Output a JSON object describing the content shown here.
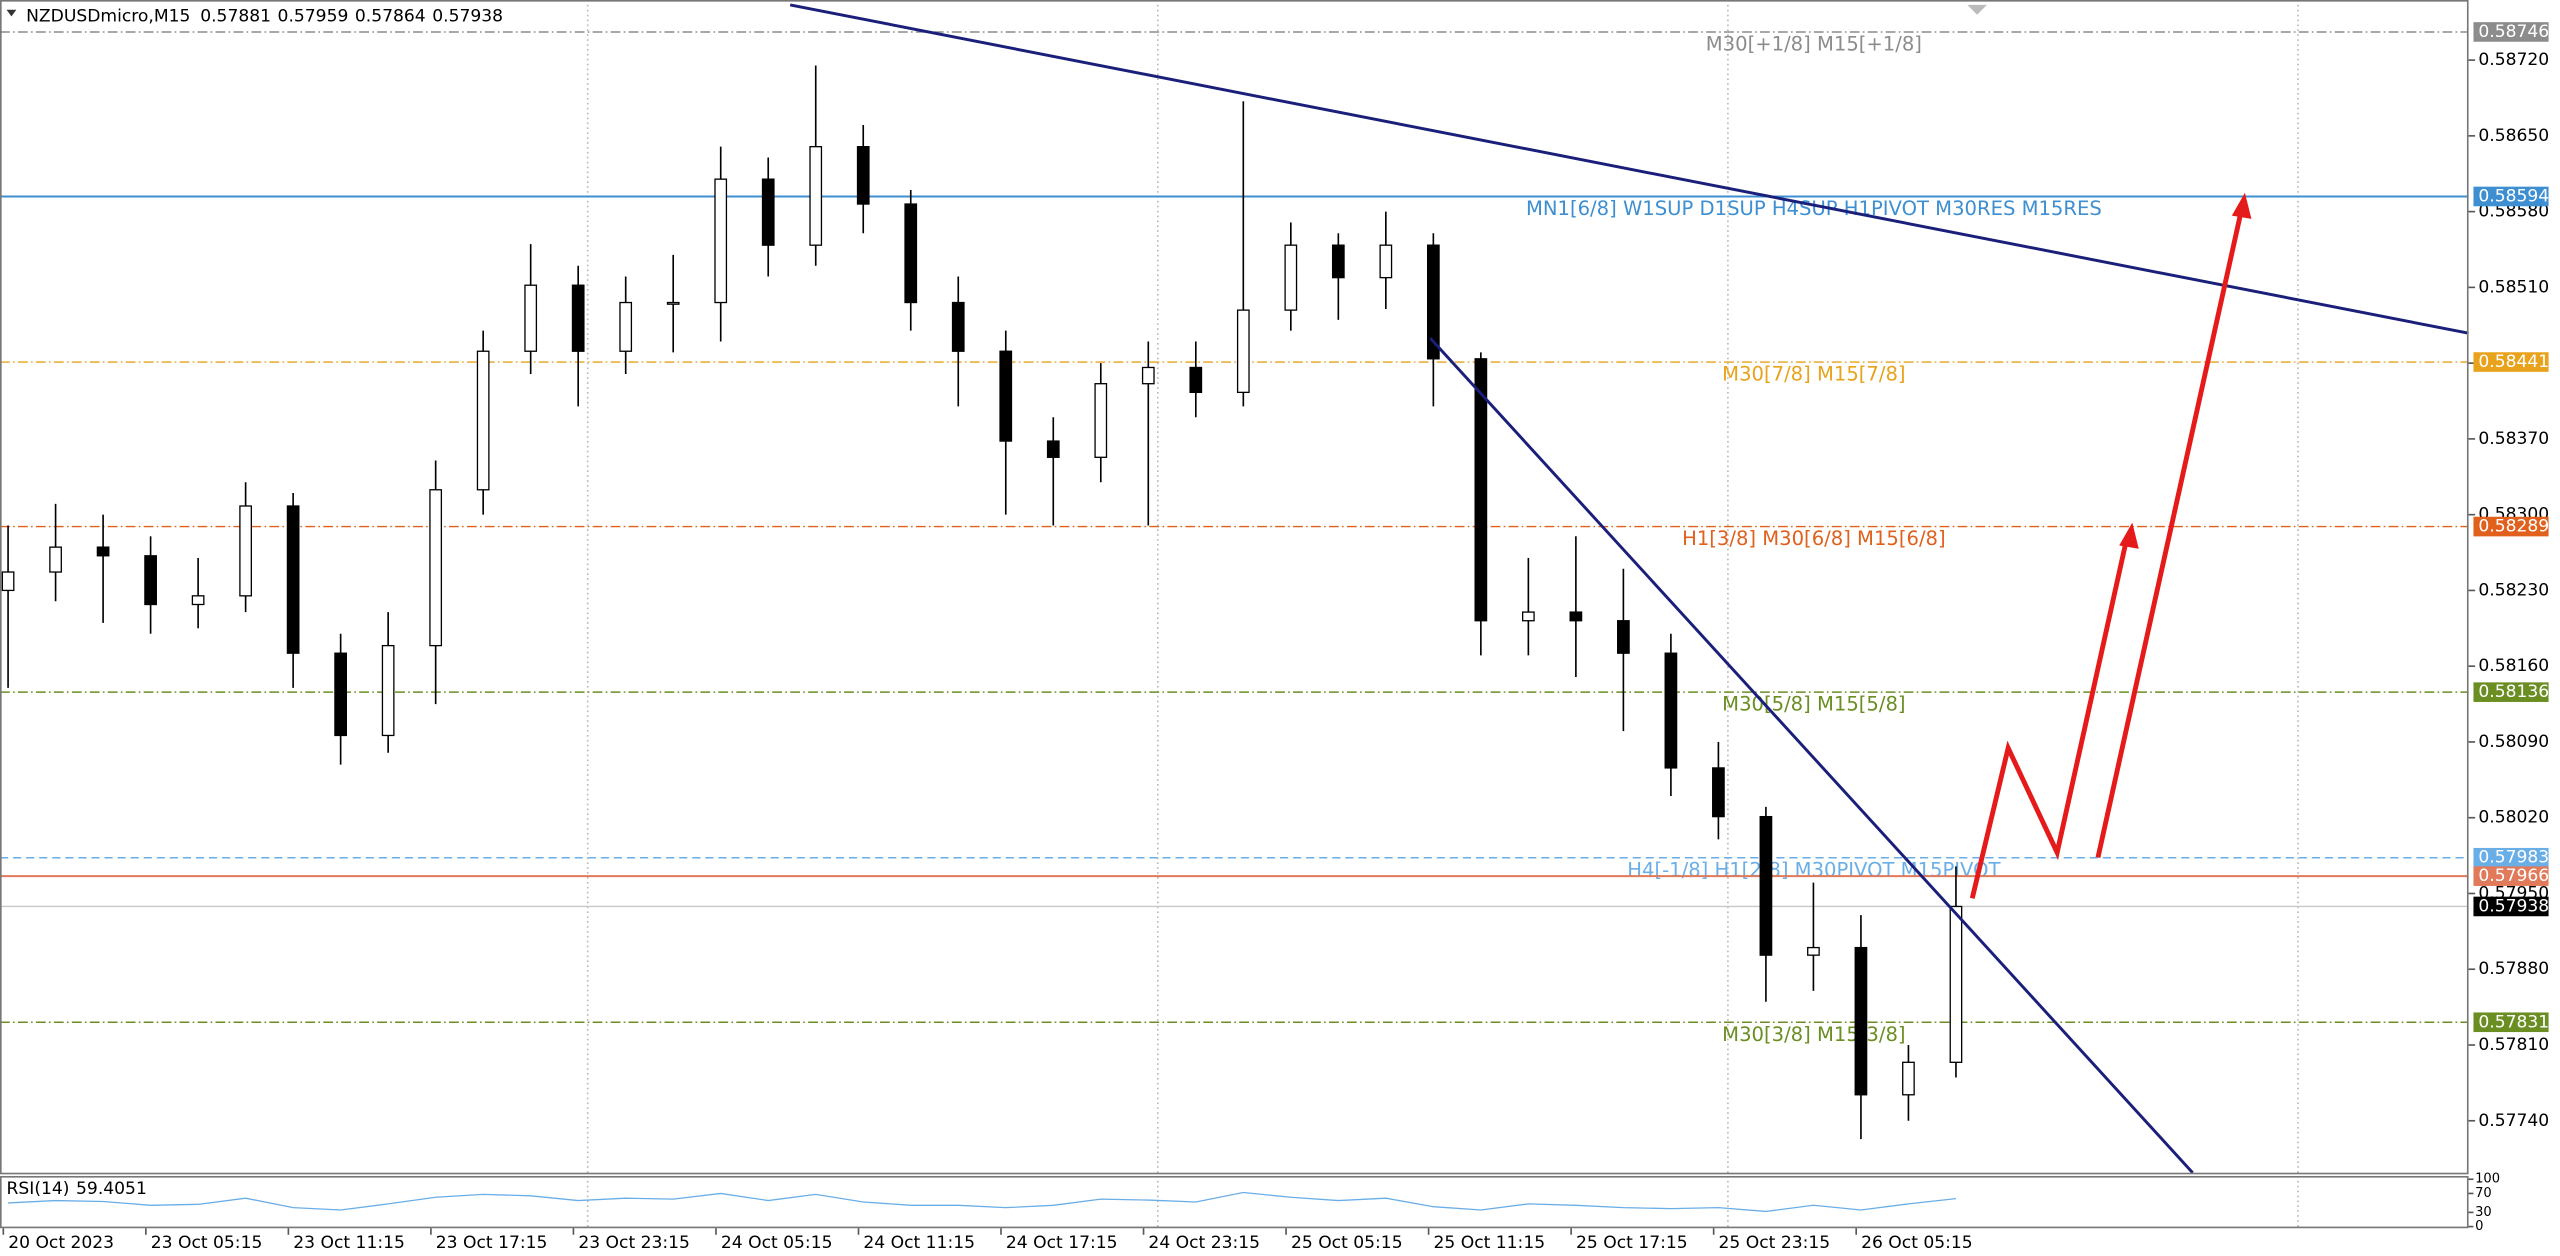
{
  "chart_data": {
    "type": "candlestick",
    "symbol": "NZDUSDmicro,M15",
    "header_ohlc": [
      0.57881,
      0.57959,
      0.57864,
      0.57938
    ],
    "open": [
      0.5823,
      0.58247,
      0.5827,
      0.58262,
      0.58217,
      0.58225,
      0.58308,
      0.58172,
      0.58096,
      0.58179,
      0.58323,
      0.58451,
      0.58512,
      0.58451,
      0.58496,
      0.58496,
      0.5861,
      0.58549,
      0.5864,
      0.58587,
      0.58496,
      0.58451,
      0.58368,
      0.58353,
      0.58421,
      0.58436,
      0.58413,
      0.58489,
      0.58549,
      0.58519,
      0.58549,
      0.58444,
      0.58202,
      0.5821,
      0.58202,
      0.58172,
      0.58066,
      0.58021,
      0.57893,
      0.579,
      0.57764,
      0.57794
    ],
    "high": [
      0.5829,
      0.5831,
      0.583,
      0.5828,
      0.5826,
      0.5833,
      0.5832,
      0.5819,
      0.5821,
      0.5835,
      0.5847,
      0.5855,
      0.5853,
      0.5852,
      0.5854,
      0.5864,
      0.5863,
      0.58715,
      0.5866,
      0.586,
      0.5852,
      0.5847,
      0.5839,
      0.5844,
      0.5846,
      0.5846,
      0.58682,
      0.5857,
      0.5856,
      0.5858,
      0.5856,
      0.5845,
      0.5826,
      0.5828,
      0.5825,
      0.5819,
      0.5809,
      0.5803,
      0.5796,
      0.5793,
      0.5781,
      0.57975
    ],
    "low": [
      0.5814,
      0.5822,
      0.582,
      0.5819,
      0.58195,
      0.5821,
      0.5814,
      0.58069,
      0.5808,
      0.58125,
      0.583,
      0.5843,
      0.584,
      0.5843,
      0.5845,
      0.5846,
      0.5852,
      0.5853,
      0.5856,
      0.5847,
      0.584,
      0.583,
      0.5829,
      0.5833,
      0.5829,
      0.5839,
      0.584,
      0.5847,
      0.5848,
      0.5849,
      0.584,
      0.5817,
      0.5817,
      0.5815,
      0.581,
      0.5804,
      0.58,
      0.5785,
      0.5786,
      0.57723,
      0.5774,
      0.5778
    ],
    "close": [
      0.58247,
      0.5827,
      0.58262,
      0.58217,
      0.58225,
      0.58308,
      0.58172,
      0.58096,
      0.58179,
      0.58323,
      0.58451,
      0.58512,
      0.58451,
      0.58496,
      0.58496,
      0.5861,
      0.58549,
      0.5864,
      0.58587,
      0.58496,
      0.58451,
      0.58368,
      0.58353,
      0.58421,
      0.58436,
      0.58413,
      0.58489,
      0.58549,
      0.58519,
      0.58549,
      0.58444,
      0.58202,
      0.5821,
      0.58202,
      0.58172,
      0.58066,
      0.58021,
      0.57893,
      0.579,
      0.57764,
      0.57794,
      0.57938
    ],
    "xlim": [
      -0.17,
      51.79
    ],
    "xticks": [
      {
        "value": -0.1,
        "label": "20 Oct 2023"
      },
      {
        "value": 2.9,
        "label": "23 Oct 05:15"
      },
      {
        "value": 5.9,
        "label": "23 Oct 11:15"
      },
      {
        "value": 8.9,
        "label": "23 Oct 17:15"
      },
      {
        "value": 11.9,
        "label": "23 Oct 23:15"
      },
      {
        "value": 14.9,
        "label": "24 Oct 05:15"
      },
      {
        "value": 17.9,
        "label": "24 Oct 11:15"
      },
      {
        "value": 20.9,
        "label": "24 Oct 17:15"
      },
      {
        "value": 23.9,
        "label": "24 Oct 23:15"
      },
      {
        "value": 26.9,
        "label": "25 Oct 05:15"
      },
      {
        "value": 29.9,
        "label": "25 Oct 11:15"
      },
      {
        "value": 32.9,
        "label": "25 Oct 17:15"
      },
      {
        "value": 35.9,
        "label": "25 Oct 23:15"
      },
      {
        "value": 38.9,
        "label": "26 Oct 05:15"
      }
    ],
    "xgrid": [
      12.2,
      24.2,
      36.2,
      48.2
    ],
    "ylim": [
      0.57692,
      0.58771
    ],
    "yticks": [
      {
        "value": 0.5872,
        "label": "0.58720"
      },
      {
        "value": 0.5865,
        "label": "0.58650"
      },
      {
        "value": 0.5858,
        "label": "0.58580"
      },
      {
        "value": 0.5851,
        "label": "0.58510"
      },
      {
        "value": 0.5844,
        "label": "0.58440"
      },
      {
        "value": 0.5837,
        "label": "0.58370"
      },
      {
        "value": 0.583,
        "label": "0.58300"
      },
      {
        "value": 0.5823,
        "label": "0.58230"
      },
      {
        "value": 0.5816,
        "label": "0.58160"
      },
      {
        "value": 0.5809,
        "label": "0.58090"
      },
      {
        "value": 0.5802,
        "label": "0.58020"
      },
      {
        "value": 0.5795,
        "label": "0.57950"
      },
      {
        "value": 0.5788,
        "label": "0.57880"
      },
      {
        "value": 0.5781,
        "label": "0.57810"
      },
      {
        "value": 0.5774,
        "label": "0.57740"
      }
    ],
    "grid": true,
    "bull_color": "#ffffff",
    "bear_color": "#000000",
    "levels": [
      {
        "name": "M30[+1/8] M15[+1/8]",
        "value": 0.58746,
        "color": "#8c8c8c",
        "style": "dashdot"
      },
      {
        "name": "MN1[6/8] W1SUP D1SUP H4SUP H1PIVOT M30RES M15RES",
        "value": 0.58594,
        "color": "#3d8fd1",
        "style": "solid"
      },
      {
        "name": "M30[7/8] M15[7/8]",
        "value": 0.58441,
        "color": "#e8a21c",
        "style": "dashdot"
      },
      {
        "name": "H1[3/8] M30[6/8] M15[6/8]",
        "value": 0.58289,
        "color": "#e0601c",
        "style": "dashdot"
      },
      {
        "name": "M30[5/8] M15[5/8]",
        "value": 0.58136,
        "color": "#6b8e23",
        "style": "dashdot"
      },
      {
        "name": "H4[-1/8] H1[2/8] M30PIVOT M15PIVOT",
        "value": 0.57983,
        "color": "#6aaee8",
        "style": "dashed"
      },
      {
        "value": 0.57966,
        "color": "#e07a5a",
        "style": "solid"
      },
      {
        "name": "M30[3/8] M15[3/8]",
        "value": 0.57831,
        "color": "#6b8e23",
        "style": "dashdot"
      }
    ],
    "last_price": 0.57938,
    "rsi": {
      "label": "RSI(14)",
      "value": 59.4051,
      "color": "#6aaee8",
      "values": [
        50,
        55,
        53,
        45,
        47,
        60,
        40,
        35,
        48,
        62,
        68,
        65,
        55,
        60,
        58,
        70,
        55,
        68,
        52,
        45,
        45,
        40,
        45,
        58,
        56,
        52,
        72,
        62,
        55,
        60,
        42,
        35,
        48,
        45,
        40,
        38,
        40,
        32,
        45,
        35,
        48,
        59
      ],
      "ylim": [
        0,
        100
      ],
      "yticks": [
        100,
        70,
        30,
        0
      ]
    }
  }
}
